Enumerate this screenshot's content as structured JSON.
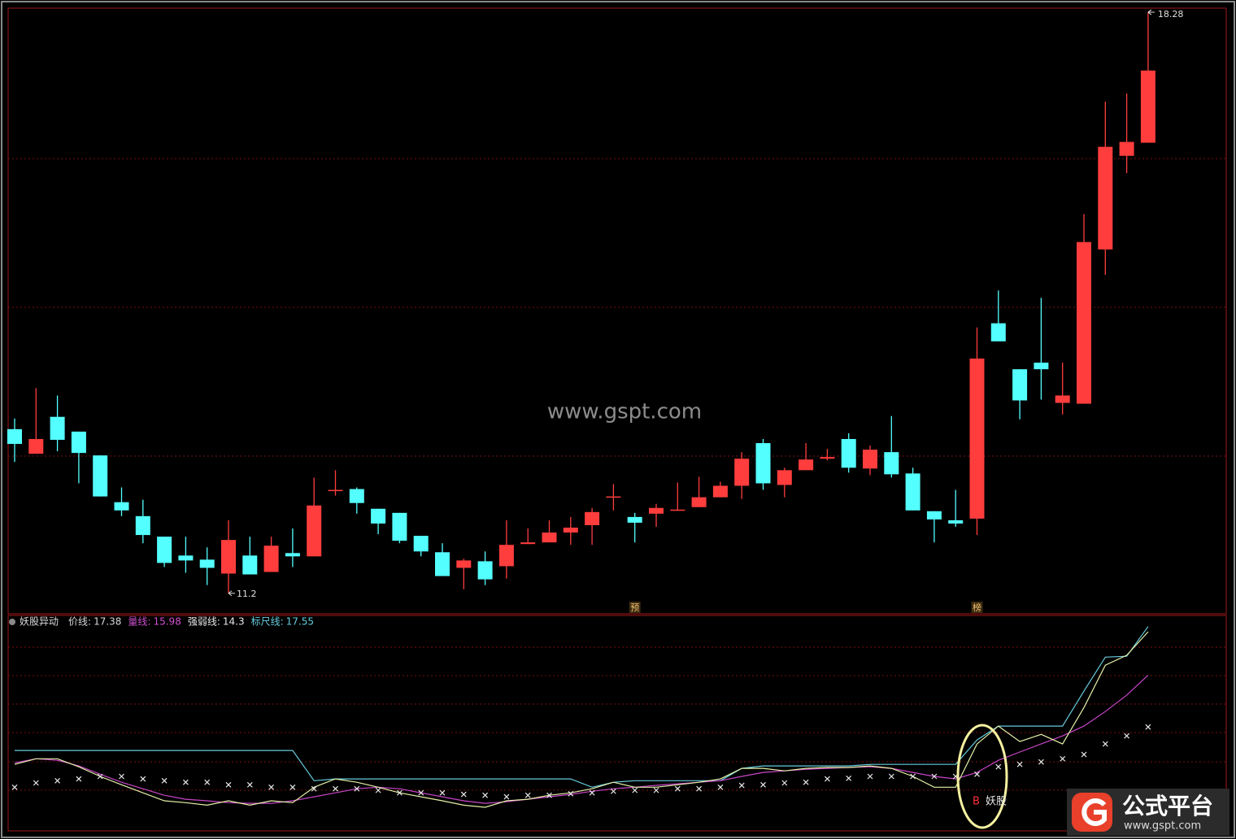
{
  "chart_data": [
    {
      "type": "candlestick",
      "ylim": [
        10.95,
        18.33
      ],
      "up_color": "#ff3d3d",
      "down_color": "#54ffff",
      "open": [
        13.2,
        12.9,
        13.35,
        13.17,
        12.88,
        12.31,
        12.14,
        11.89,
        11.66,
        11.61,
        11.44,
        11.66,
        11.46,
        11.69,
        11.65,
        12.45,
        12.47,
        12.23,
        12.18,
        11.9,
        11.7,
        11.51,
        11.59,
        11.53,
        11.8,
        11.82,
        11.94,
        12.03,
        12.37,
        12.13,
        12.17,
        12.21,
        12.25,
        12.37,
        12.51,
        13.03,
        12.52,
        12.7,
        12.84,
        13.08,
        12.72,
        12.92,
        12.66,
        12.2,
        12.09,
        12.11,
        14.49,
        13.93,
        14.01,
        13.52,
        13.51,
        15.39,
        16.53,
        16.69
      ],
      "high": [
        13.33,
        13.7,
        13.61,
        13.17,
        12.88,
        12.49,
        12.34,
        11.89,
        11.89,
        11.76,
        12.09,
        11.89,
        11.89,
        11.99,
        12.61,
        12.7,
        12.49,
        12.23,
        12.18,
        11.9,
        11.81,
        11.62,
        11.71,
        12.09,
        11.99,
        12.09,
        12.13,
        12.24,
        12.53,
        12.18,
        12.29,
        12.55,
        12.62,
        12.56,
        12.92,
        13.08,
        12.73,
        13.03,
        12.96,
        13.15,
        13.0,
        13.36,
        12.73,
        12.2,
        12.46,
        14.44,
        14.89,
        13.93,
        14.8,
        14.01,
        15.82,
        17.19,
        17.29,
        18.28
      ],
      "low": [
        12.8,
        12.9,
        12.93,
        12.54,
        12.38,
        12.14,
        11.81,
        11.52,
        11.45,
        11.3,
        11.2,
        11.43,
        11.46,
        11.52,
        11.65,
        12.39,
        12.17,
        11.92,
        11.81,
        11.65,
        11.41,
        11.25,
        11.3,
        11.38,
        11.8,
        11.82,
        11.79,
        11.79,
        12.21,
        11.82,
        12.01,
        12.21,
        12.25,
        12.37,
        12.35,
        12.46,
        12.37,
        12.7,
        12.82,
        12.67,
        12.64,
        12.61,
        12.21,
        11.82,
        12.01,
        11.91,
        14.27,
        13.32,
        13.56,
        13.38,
        13.51,
        15.08,
        16.32,
        16.69
      ],
      "close": [
        13.02,
        13.08,
        13.07,
        12.91,
        12.38,
        12.21,
        11.91,
        11.57,
        11.6,
        11.51,
        11.85,
        11.43,
        11.78,
        11.65,
        12.27,
        12.46,
        12.3,
        12.05,
        11.84,
        11.71,
        11.41,
        11.6,
        11.37,
        11.79,
        11.82,
        11.94,
        12.0,
        12.19,
        12.38,
        12.06,
        12.24,
        12.22,
        12.37,
        12.51,
        12.84,
        12.54,
        12.7,
        12.83,
        12.86,
        12.73,
        12.95,
        12.65,
        12.21,
        12.1,
        12.05,
        14.06,
        14.27,
        13.55,
        13.93,
        13.61,
        15.48,
        16.64,
        16.7,
        17.57
      ],
      "markers": [
        "预",
        "榜"
      ],
      "watermark": "www.gspt.com"
    },
    {
      "type": "line",
      "title": "妖股异动",
      "ylim": [
        10.99,
        17.91
      ],
      "series": [
        {
          "name": "价线:",
          "color": "#e4f0a8",
          "label_color": "#d8d8d8",
          "values": [
            13.09,
            13.27,
            13.27,
            13.01,
            12.7,
            12.43,
            12.17,
            11.91,
            11.85,
            11.77,
            11.91,
            11.77,
            11.91,
            11.85,
            12.35,
            12.62,
            12.51,
            12.35,
            12.17,
            12.04,
            11.91,
            11.77,
            11.7,
            11.91,
            11.96,
            12.09,
            12.17,
            12.3,
            12.51,
            12.35,
            12.35,
            12.43,
            12.51,
            12.62,
            12.96,
            12.96,
            12.88,
            12.96,
            12.99,
            12.99,
            13.04,
            12.96,
            12.7,
            12.35,
            12.35,
            13.75,
            14.33,
            13.83,
            14.06,
            13.75,
            14.93,
            16.3,
            16.62,
            17.38
          ]
        },
        {
          "name": "量线:",
          "color": "#c846c8",
          "label_color": "#d050d0",
          "values": [
            13.14,
            13.27,
            13.22,
            13.04,
            12.77,
            12.51,
            12.3,
            12.09,
            11.96,
            11.91,
            11.85,
            11.83,
            11.83,
            11.91,
            12.04,
            12.17,
            12.3,
            12.35,
            12.3,
            12.17,
            12.04,
            11.91,
            11.83,
            11.88,
            11.96,
            12.04,
            12.12,
            12.22,
            12.3,
            12.35,
            12.41,
            12.46,
            12.51,
            12.56,
            12.7,
            12.83,
            12.88,
            12.93,
            12.96,
            12.99,
            13.01,
            12.96,
            12.83,
            12.7,
            12.62,
            12.83,
            13.22,
            13.49,
            13.75,
            14.01,
            14.33,
            14.8,
            15.33,
            15.98
          ]
        },
        {
          "name": "强弱线:",
          "color": "#e8e8e8",
          "label_color": "#e8e8e8",
          "marker": "x",
          "values": [
            12.35,
            12.49,
            12.56,
            12.62,
            12.7,
            12.7,
            12.62,
            12.56,
            12.51,
            12.51,
            12.43,
            12.43,
            12.35,
            12.35,
            12.3,
            12.3,
            12.3,
            12.25,
            12.17,
            12.17,
            12.17,
            12.12,
            12.09,
            12.04,
            12.09,
            12.09,
            12.14,
            12.17,
            12.22,
            12.25,
            12.25,
            12.3,
            12.3,
            12.35,
            12.41,
            12.43,
            12.49,
            12.51,
            12.62,
            12.64,
            12.7,
            12.7,
            12.7,
            12.7,
            12.7,
            12.77,
            13.01,
            13.09,
            13.17,
            13.27,
            13.41,
            13.75,
            14.01,
            14.3
          ]
        },
        {
          "name": "标尺线:",
          "color": "#66ccdd",
          "label_color": "#66ccdd",
          "values": [
            13.54,
            13.54,
            13.54,
            13.54,
            13.54,
            13.54,
            13.54,
            13.54,
            13.54,
            13.54,
            13.54,
            13.54,
            13.54,
            13.54,
            12.56,
            12.62,
            12.62,
            12.62,
            12.62,
            12.62,
            12.62,
            12.62,
            12.62,
            12.62,
            12.62,
            12.62,
            12.62,
            12.35,
            12.51,
            12.56,
            12.56,
            12.56,
            12.56,
            12.56,
            12.96,
            13.04,
            13.04,
            13.04,
            13.04,
            13.04,
            13.09,
            13.09,
            13.09,
            13.09,
            13.09,
            13.88,
            14.33,
            14.33,
            14.33,
            14.33,
            15.46,
            16.56,
            16.59,
            17.55
          ]
        }
      ],
      "signal": {
        "letter": "B",
        "text": "妖股"
      }
    }
  ],
  "logo": {
    "title": "公式平台",
    "url": "www.gspt.com"
  }
}
